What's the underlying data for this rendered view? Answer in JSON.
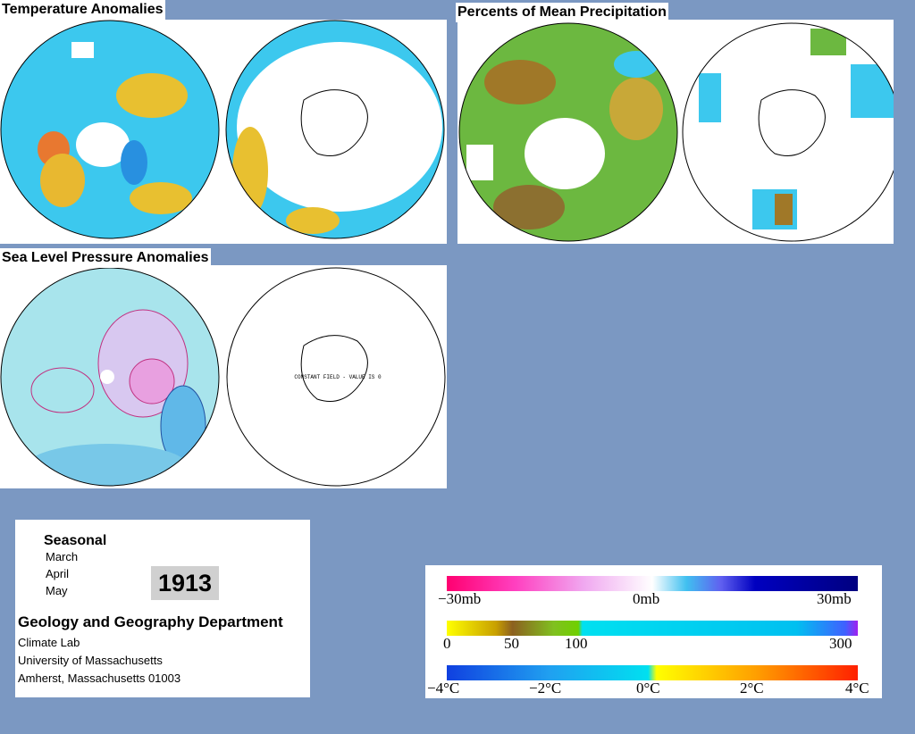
{
  "panels": [
    {
      "title": "Temperature Anomalies"
    },
    {
      "title": "Percents of Mean Precipitation"
    },
    {
      "title": "Sea Level Pressure Anomalies",
      "annotation": "CONSTANT FIELD - VALUE IS 0"
    }
  ],
  "info": {
    "heading": "Seasonal",
    "months": [
      "March",
      "April",
      "May"
    ],
    "year": "1913",
    "department": "Geology and Geography Department",
    "address": [
      "Climate Lab",
      "University of Massachusetts",
      "Amherst, Massachusetts 01003"
    ]
  },
  "scales": [
    {
      "labels": [
        "−30mb",
        "0mb",
        "30mb"
      ]
    },
    {
      "labels": [
        "0",
        "50",
        "100",
        "300"
      ]
    },
    {
      "labels": [
        "−4°C",
        "−2°C",
        "0°C",
        "2°C",
        "4°C"
      ]
    }
  ]
}
